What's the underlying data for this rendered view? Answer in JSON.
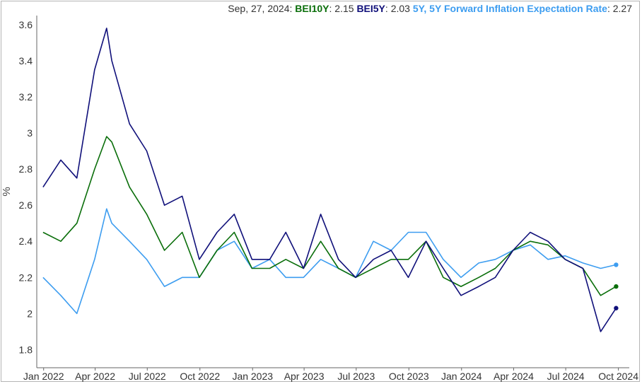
{
  "legend": {
    "date": "Sep, 27, 2024",
    "items": [
      {
        "label": "BEI10Y",
        "value": "2.15",
        "color": "#0a6e0a"
      },
      {
        "label": "BEI5Y",
        "value": "2.03",
        "color": "#10107a"
      },
      {
        "label": "5Y, 5Y Forward Inflation Expectation Rate",
        "value": "2.27",
        "color": "#3d9df0"
      }
    ]
  },
  "chart_data": {
    "type": "line",
    "title": "",
    "xlabel": "",
    "ylabel": "%",
    "x_ticks": [
      "Jan 2022",
      "Apr 2022",
      "Jul 2022",
      "Oct 2022",
      "Jan 2023",
      "Apr 2023",
      "Jul 2023",
      "Oct 2023",
      "Jan 2024",
      "Apr 2024",
      "Jul 2024",
      "Oct 2024"
    ],
    "y_ticks": [
      1.8,
      2,
      2.2,
      2.4,
      2.6,
      2.8,
      3,
      3.2,
      3.4,
      3.6
    ],
    "ylim": [
      1.7,
      3.65
    ],
    "grid": false,
    "legend_position": "top",
    "x_dates": [
      "2021-12-31",
      "2022-01-31",
      "2022-02-28",
      "2022-03-31",
      "2022-04-21",
      "2022-04-30",
      "2022-05-31",
      "2022-06-30",
      "2022-07-31",
      "2022-08-31",
      "2022-09-30",
      "2022-10-31",
      "2022-11-30",
      "2022-12-31",
      "2023-01-31",
      "2023-02-28",
      "2023-03-31",
      "2023-04-30",
      "2023-05-31",
      "2023-06-30",
      "2023-07-31",
      "2023-08-31",
      "2023-09-30",
      "2023-10-31",
      "2023-11-30",
      "2023-12-31",
      "2024-01-31",
      "2024-02-29",
      "2024-03-31",
      "2024-04-30",
      "2024-05-31",
      "2024-06-30",
      "2024-07-31",
      "2024-08-31",
      "2024-09-27"
    ],
    "series": [
      {
        "name": "BEI5Y",
        "color": "#10107a",
        "values": [
          2.7,
          2.85,
          2.75,
          3.35,
          3.58,
          3.4,
          3.05,
          2.9,
          2.6,
          2.65,
          2.3,
          2.45,
          2.55,
          2.3,
          2.3,
          2.45,
          2.25,
          2.55,
          2.3,
          2.2,
          2.3,
          2.35,
          2.2,
          2.4,
          2.25,
          2.1,
          2.15,
          2.2,
          2.35,
          2.45,
          2.4,
          2.3,
          2.25,
          1.9,
          2.03
        ]
      },
      {
        "name": "BEI10Y",
        "color": "#0a6e0a",
        "values": [
          2.45,
          2.4,
          2.5,
          2.8,
          2.98,
          2.95,
          2.7,
          2.55,
          2.35,
          2.45,
          2.2,
          2.35,
          2.45,
          2.25,
          2.25,
          2.3,
          2.25,
          2.4,
          2.25,
          2.2,
          2.25,
          2.3,
          2.3,
          2.4,
          2.2,
          2.15,
          2.2,
          2.25,
          2.35,
          2.4,
          2.38,
          2.3,
          2.25,
          2.1,
          2.15
        ]
      },
      {
        "name": "5Y, 5Y Forward Inflation Expectation Rate",
        "color": "#3d9df0",
        "values": [
          2.2,
          2.1,
          2.0,
          2.3,
          2.58,
          2.5,
          2.4,
          2.3,
          2.15,
          2.2,
          2.2,
          2.35,
          2.4,
          2.25,
          2.3,
          2.2,
          2.2,
          2.3,
          2.25,
          2.2,
          2.4,
          2.35,
          2.45,
          2.45,
          2.3,
          2.2,
          2.28,
          2.3,
          2.35,
          2.38,
          2.3,
          2.32,
          2.28,
          2.25,
          2.27
        ]
      }
    ]
  }
}
